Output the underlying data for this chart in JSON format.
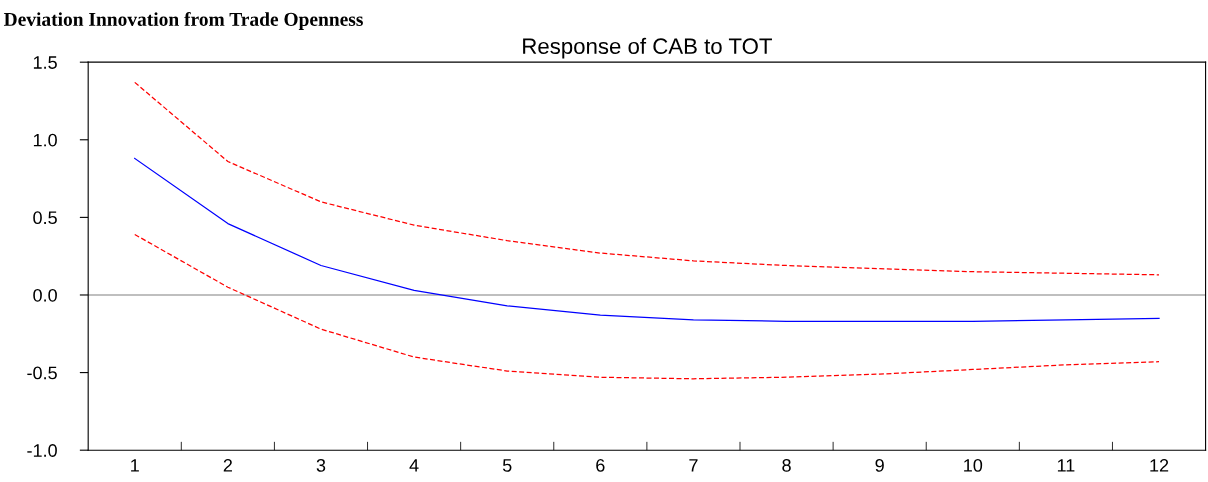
{
  "chart_data": {
    "type": "line",
    "title": "Response of CAB to TOT",
    "annotations": [
      "Deviation Innovation from Trade Openness"
    ],
    "categories": [
      "1",
      "2",
      "3",
      "4",
      "5",
      "6",
      "7",
      "8",
      "9",
      "10",
      "11",
      "12"
    ],
    "series": [
      {
        "color": "#0000ff",
        "line_style": "solid",
        "values": [
          0.88,
          0.46,
          0.19,
          0.03,
          -0.07,
          -0.13,
          -0.16,
          -0.17,
          -0.17,
          -0.17,
          -0.16,
          -0.15
        ]
      },
      {
        "color": "#ff0000",
        "line_style": "dashed",
        "values": [
          1.37,
          0.86,
          0.6,
          0.45,
          0.35,
          0.27,
          0.22,
          0.19,
          0.17,
          0.15,
          0.14,
          0.13
        ]
      },
      {
        "color": "#ff0000",
        "line_style": "dashed",
        "values": [
          0.39,
          0.05,
          -0.22,
          -0.4,
          -0.49,
          -0.53,
          -0.54,
          -0.53,
          -0.51,
          -0.48,
          -0.45,
          -0.43
        ]
      }
    ],
    "ylim": [
      -1.0,
      1.5
    ],
    "yticks": [
      {
        "value": -1.0,
        "label": "-1.0"
      },
      {
        "value": -0.5,
        "label": "-0.5"
      },
      {
        "value": 0.0,
        "label": "0.0"
      },
      {
        "value": 0.5,
        "label": "0.5"
      },
      {
        "value": 1.0,
        "label": "1.0"
      },
      {
        "value": 1.5,
        "label": "1.5"
      }
    ],
    "ref_lines": [
      {
        "axis": "y",
        "value": 0,
        "label": null,
        "color": "#808080"
      }
    ],
    "grid": false,
    "legend": false,
    "marker": "none"
  }
}
